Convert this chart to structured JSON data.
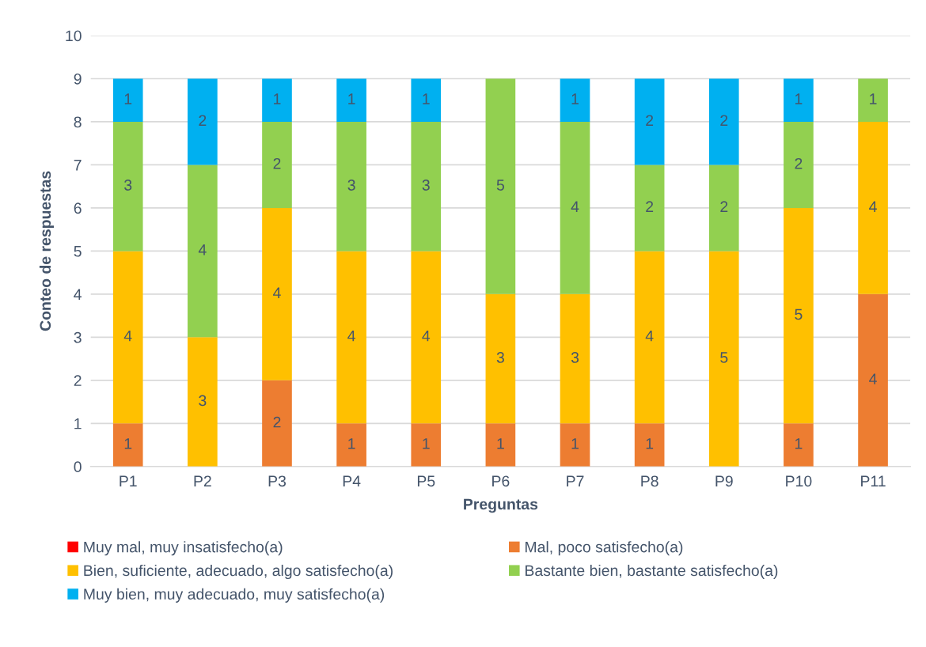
{
  "chart_data": {
    "type": "bar",
    "stacked": true,
    "xlabel": "Preguntas",
    "ylabel": "Conteo de respuestas",
    "categories": [
      "P1",
      "P2",
      "P3",
      "P4",
      "P5",
      "P6",
      "P7",
      "P8",
      "P9",
      "P10",
      "P11"
    ],
    "ylim": [
      0,
      10
    ],
    "yticks": [
      0,
      1,
      2,
      3,
      4,
      5,
      6,
      7,
      8,
      9,
      10
    ],
    "grid": "y",
    "legend": "bottom",
    "series": [
      {
        "name": "Muy mal, muy insatisfecho(a)",
        "color": "#ff0000",
        "values": [
          0,
          0,
          0,
          0,
          0,
          0,
          0,
          0,
          0,
          0,
          0
        ],
        "value_labels": [
          null,
          null,
          null,
          null,
          null,
          null,
          null,
          null,
          null,
          null,
          null
        ]
      },
      {
        "name": "Mal, poco satisfecho(a)",
        "color": "#ed7d31",
        "values": [
          1,
          0,
          2,
          1,
          1,
          1,
          1,
          1,
          0,
          1,
          4
        ],
        "value_labels": [
          "1",
          null,
          "2",
          "1",
          "1",
          "1",
          "1",
          "1",
          null,
          "1",
          "4"
        ]
      },
      {
        "name": "Bien, suficiente, adecuado, algo satisfecho(a)",
        "color": "#ffc000",
        "values": [
          4,
          3,
          4,
          4,
          4,
          3,
          3,
          4,
          5,
          5,
          4
        ],
        "value_labels": [
          "4",
          "3",
          "4",
          "4",
          "4",
          "3",
          "3",
          "4",
          "5",
          "5",
          "4"
        ]
      },
      {
        "name": "Bastante bien, bastante satisfecho(a)",
        "color": "#92d050",
        "values": [
          3,
          4,
          2,
          3,
          3,
          5,
          4,
          2,
          2,
          2,
          1
        ],
        "value_labels": [
          "3",
          "4",
          "2",
          "3",
          "3",
          "5",
          "4",
          "2",
          "2",
          "2",
          "1"
        ]
      },
      {
        "name": "Muy bien, muy adecuado, muy satisfecho(a)",
        "color": "#00b0f0",
        "values": [
          1,
          2,
          1,
          1,
          1,
          0,
          1,
          2,
          2,
          1,
          0
        ],
        "value_labels": [
          "1",
          "2",
          "1",
          "1",
          "1",
          null,
          "1",
          "2",
          "2",
          "1",
          null
        ]
      }
    ]
  }
}
